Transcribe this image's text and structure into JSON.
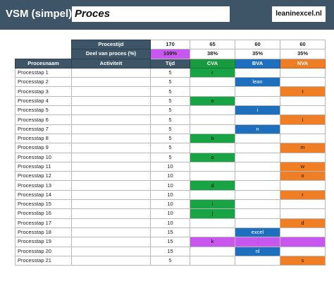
{
  "header": {
    "title": "VSM (simpel)",
    "title_value": "Proces",
    "brand": "leaninexcel.nl"
  },
  "summary": {
    "procestijd_label": "Procestijd",
    "deel_label": "Deel van proces (%)",
    "procestijd": {
      "tijd": "170",
      "cva": "65",
      "bva": "60",
      "nva": "60"
    },
    "deel": {
      "tijd": "109%",
      "cva": "38%",
      "bva": "35%",
      "nva": "35%"
    }
  },
  "columns": {
    "procesnaam": "Procesnaam",
    "activiteit": "Activiteit",
    "tijd": "Tijd",
    "cva": "CVA",
    "bva": "BVA",
    "nva": "NVA"
  },
  "colors": {
    "header_bg": "#3d5566",
    "cva": "#18a344",
    "bva": "#1f6fbf",
    "nva": "#ef7e25",
    "highlight": "#c857f0"
  },
  "rows": [
    {
      "name": "Processtap 1",
      "tijd": "5",
      "cva": "r",
      "bva": "",
      "nva": ""
    },
    {
      "name": "Processtap 2",
      "tijd": "5",
      "cva": "",
      "bva": "lean",
      "nva": ""
    },
    {
      "name": "Processtap 3",
      "tijd": "5",
      "cva": "",
      "bva": "",
      "nva": "t"
    },
    {
      "name": "Processtap 4",
      "tijd": "5",
      "cva": "o",
      "bva": "",
      "nva": ""
    },
    {
      "name": "Processtap 5",
      "tijd": "5",
      "cva": "",
      "bva": "i",
      "nva": ""
    },
    {
      "name": "Processtap 6",
      "tijd": "5",
      "cva": "",
      "bva": "",
      "nva": "i"
    },
    {
      "name": "Processtap 7",
      "tijd": "5",
      "cva": "",
      "bva": "n",
      "nva": ""
    },
    {
      "name": "Processtap 8",
      "tijd": "5",
      "cva": "b",
      "bva": "",
      "nva": ""
    },
    {
      "name": "Processtap 9",
      "tijd": "5",
      "cva": "",
      "bva": "",
      "nva": "m"
    },
    {
      "name": "Processtap 10",
      "tijd": "5",
      "cva": "o",
      "bva": "",
      "nva": ""
    },
    {
      "name": "Processtap 11",
      "tijd": "10",
      "cva": "",
      "bva": "",
      "nva": "w"
    },
    {
      "name": "Processtap 12",
      "tijd": "10",
      "cva": "",
      "bva": "",
      "nva": "o"
    },
    {
      "name": "Processtap 13",
      "tijd": "10",
      "cva": "d",
      "bva": "",
      "nva": ""
    },
    {
      "name": "Processtap 14",
      "tijd": "10",
      "cva": "",
      "bva": "",
      "nva": "r"
    },
    {
      "name": "Processtap 15",
      "tijd": "10",
      "cva": "i",
      "bva": "",
      "nva": ""
    },
    {
      "name": "Processtap 16",
      "tijd": "10",
      "cva": "j",
      "bva": "",
      "nva": ""
    },
    {
      "name": "Processtap 17",
      "tijd": "10",
      "cva": "",
      "bva": "",
      "nva": "d"
    },
    {
      "name": "Processtap 18",
      "tijd": "15",
      "cva": "",
      "bva": "excel",
      "nva": ""
    },
    {
      "name": "Processtap 19",
      "tijd": "15",
      "cva": "k",
      "bva": ".",
      "nva": "",
      "highlight": true
    },
    {
      "name": "Processtap 20",
      "tijd": "15",
      "cva": "",
      "bva": "nl",
      "nva": ""
    },
    {
      "name": "Processtap 21",
      "tijd": "5",
      "cva": "",
      "bva": "",
      "nva": "s"
    }
  ]
}
